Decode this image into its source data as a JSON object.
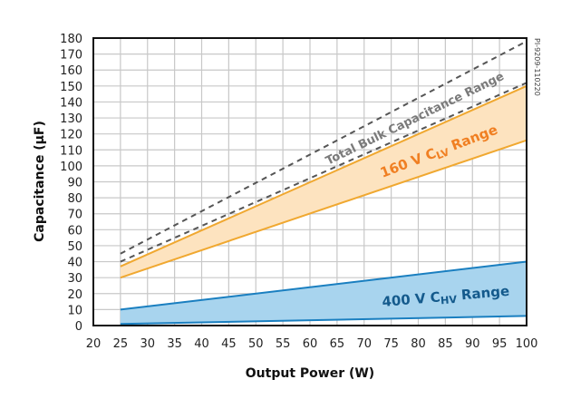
{
  "chart_data": {
    "type": "area",
    "xlabel": "Output Power (W)",
    "ylabel": "Capacitance (µF)",
    "xlim": [
      20,
      100
    ],
    "ylim": [
      0,
      180
    ],
    "xticks": [
      "20",
      "25",
      "30",
      "35",
      "40",
      "45",
      "50",
      "55",
      "60",
      "65",
      "70",
      "75",
      "80",
      "85",
      "90",
      "95",
      "100"
    ],
    "yticks": [
      "0",
      "10",
      "20",
      "30",
      "40",
      "50",
      "60",
      "70",
      "80",
      "90",
      "100",
      "110",
      "120",
      "130",
      "140",
      "150",
      "160",
      "170",
      "180"
    ],
    "grid": true,
    "bands": [
      {
        "name": "Total Bulk Capacitance Range",
        "label_main": "Total Bulk Capacitance Range",
        "style": "dashed",
        "color": "#555555",
        "x": [
          25,
          100
        ],
        "lower": [
          40,
          152
        ],
        "upper": [
          45,
          178
        ]
      },
      {
        "name": "160 V CLV Range",
        "label_main": "160 V C",
        "label_sub": "LV",
        "label_end": " Range",
        "style": "filled",
        "color": "#f0a830",
        "fill": "#fde3bf",
        "text_color": "#f07f22",
        "x": [
          25,
          100
        ],
        "lower": [
          30,
          116
        ],
        "upper": [
          37,
          150
        ]
      },
      {
        "name": "400 V CHV Range",
        "label_main": "400 V C",
        "label_sub": "HV",
        "label_end": " Range",
        "style": "filled",
        "color": "#1a7fc0",
        "fill": "#a8d4ee",
        "text_color": "#145a8c",
        "x": [
          25,
          100
        ],
        "lower": [
          1,
          6
        ],
        "upper": [
          10,
          40
        ]
      }
    ],
    "annotation": "PI-9209-110220"
  }
}
